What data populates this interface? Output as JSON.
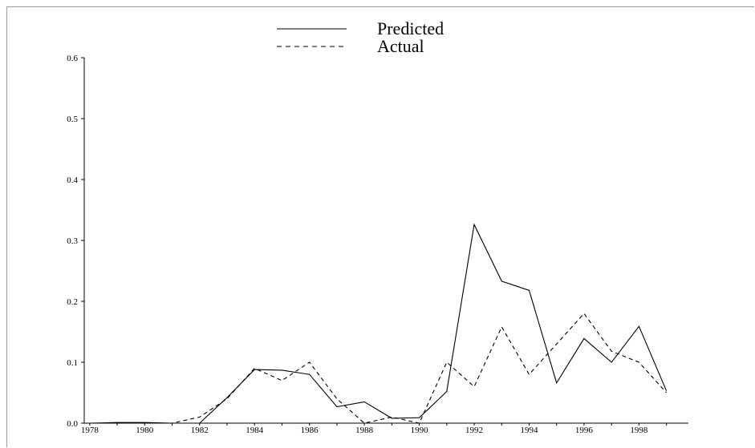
{
  "chart_data": {
    "type": "line",
    "title": "",
    "xlabel": "",
    "ylabel": "",
    "xlim": [
      1977.8,
      1999.8
    ],
    "ylim": [
      0.0,
      0.6
    ],
    "x_ticks": [
      1978,
      1980,
      1982,
      1984,
      1986,
      1988,
      1990,
      1992,
      1994,
      1996,
      1998
    ],
    "y_ticks": [
      0.0,
      0.1,
      0.2,
      0.3,
      0.4,
      0.5,
      0.6
    ],
    "y_tick_labels": [
      "0.0",
      "0.1",
      "0.2",
      "0.3",
      "0.4",
      "0.5",
      "0.6"
    ],
    "grid": false,
    "legend_position": "top-center",
    "x": [
      1978,
      1979,
      1980,
      1981,
      1982,
      1983,
      1984,
      1985,
      1986,
      1987,
      1988,
      1989,
      1990,
      1991,
      1992,
      1993,
      1994,
      1995,
      1996,
      1997,
      1998,
      1999
    ],
    "series": [
      {
        "name": "Predicted",
        "style": "solid",
        "color": "#000000",
        "values": [
          0.0,
          0.001,
          0.001,
          0.0,
          0.0,
          0.042,
          0.088,
          0.087,
          0.08,
          0.027,
          0.035,
          0.008,
          0.009,
          0.052,
          0.326,
          0.233,
          0.218,
          0.066,
          0.139,
          0.1,
          0.159,
          0.053
        ]
      },
      {
        "name": "Actual",
        "style": "dashed",
        "color": "#000000",
        "values": [
          0.0,
          0.0,
          0.0,
          0.0,
          0.01,
          0.04,
          0.09,
          0.07,
          0.1,
          0.04,
          0.0,
          0.01,
          0.0,
          0.1,
          0.06,
          0.158,
          0.08,
          0.13,
          0.18,
          0.118,
          0.1,
          0.05
        ]
      }
    ]
  }
}
